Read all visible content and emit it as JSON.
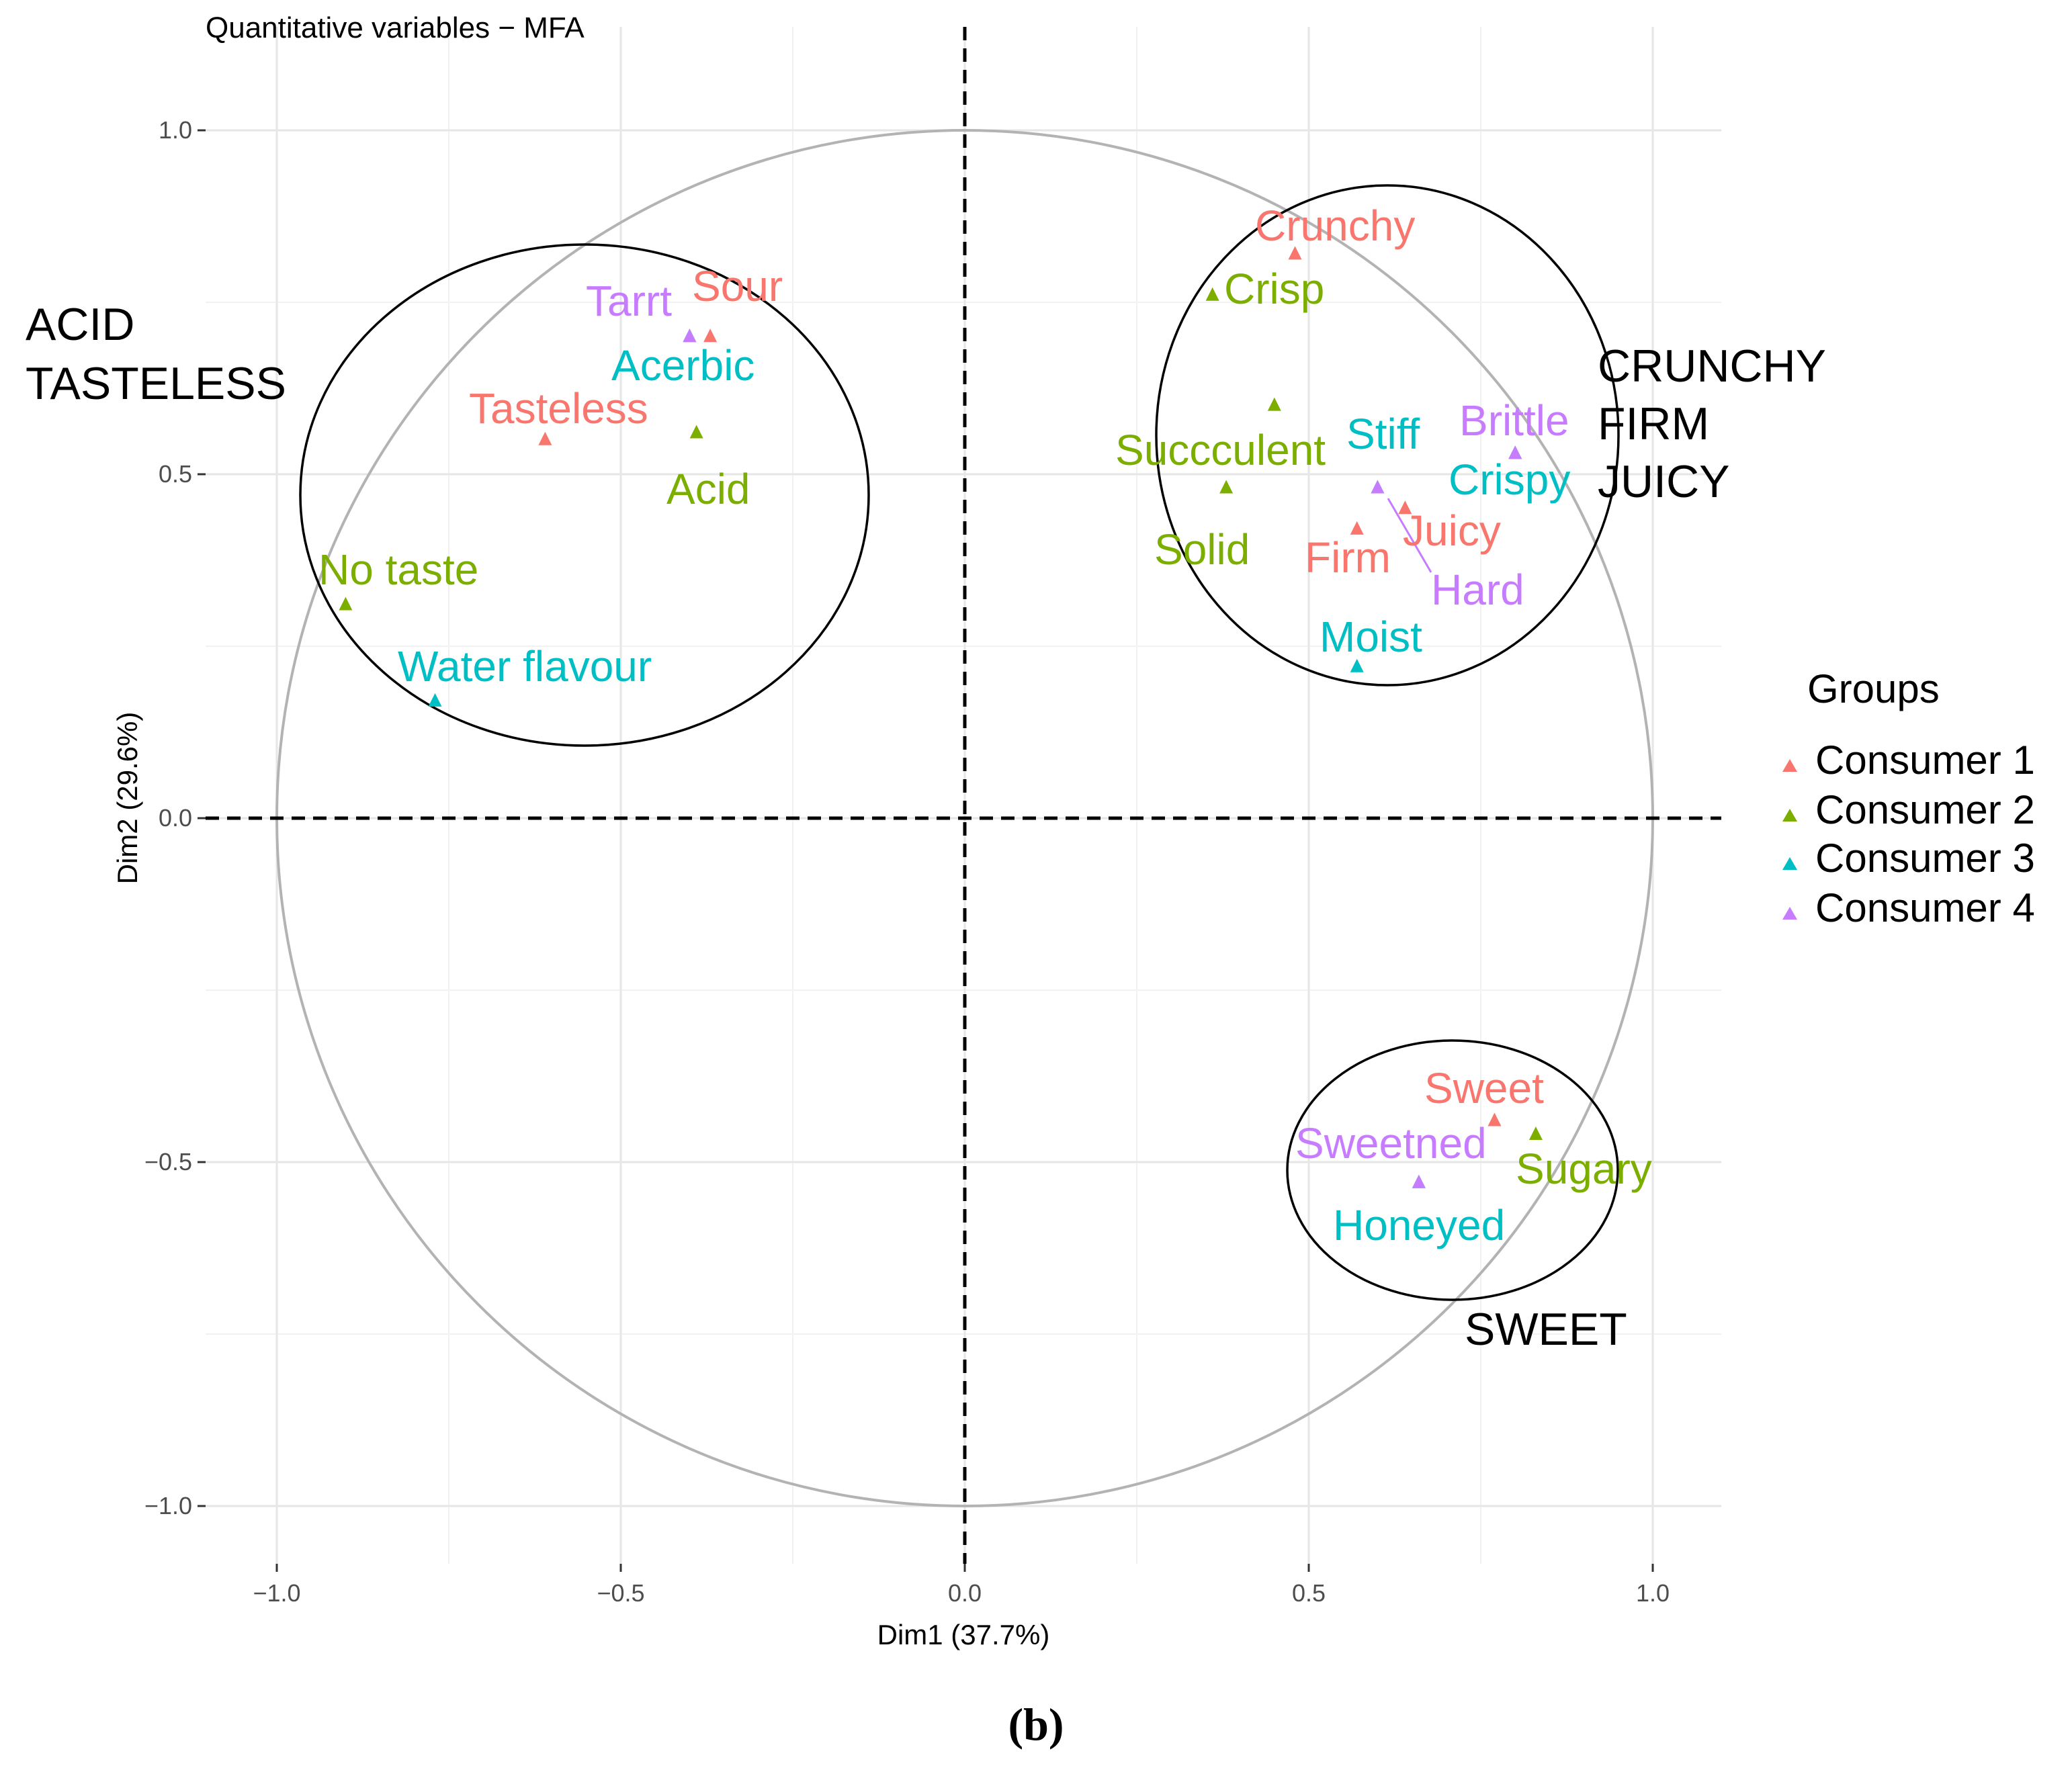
{
  "chart_data": {
    "type": "scatter",
    "title": "Quantitative variables − MFA",
    "xlabel": "Dim1 (37.7%)",
    "ylabel": "Dim2 (29.6%)",
    "xlim": [
      -1.1,
      1.1
    ],
    "ylim": [
      -1.1,
      1.1
    ],
    "x_ticks": [
      -1.0,
      -0.5,
      0.0,
      0.5,
      1.0
    ],
    "x_tick_labels": [
      "−1.0",
      "−0.5",
      "0.0",
      "0.5",
      "1.0"
    ],
    "y_ticks": [
      1.0,
      0.5,
      0.0,
      -0.5,
      -1.0
    ],
    "y_tick_labels": [
      "1.0",
      "0.5",
      "0.0",
      "−0.5",
      "−1.0"
    ],
    "grid": true,
    "correlation_circle_radius": 1.0,
    "legend": {
      "title": "Groups",
      "placement": "right",
      "entries": [
        {
          "name": "Consumer 1",
          "color": "#F8766D"
        },
        {
          "name": "Consumer 2",
          "color": "#7CAE00"
        },
        {
          "name": "Consumer 3",
          "color": "#00BFC4"
        },
        {
          "name": "Consumer 4",
          "color": "#C77CFF"
        }
      ]
    },
    "series": [
      {
        "name": "Consumer 1",
        "color": "#F8766D",
        "points": [
          {
            "label": "Sour",
            "x": -0.37,
            "y": 0.7
          },
          {
            "label": "Tasteless",
            "x": -0.61,
            "y": 0.55
          },
          {
            "label": "Crunchy",
            "x": 0.48,
            "y": 0.82
          },
          {
            "label": "Firm",
            "x": 0.57,
            "y": 0.42
          },
          {
            "label": "Juicy",
            "x": 0.64,
            "y": 0.45
          },
          {
            "label": "Sweet",
            "x": 0.77,
            "y": -0.44
          }
        ]
      },
      {
        "name": "Consumer 2",
        "color": "#7CAE00",
        "points": [
          {
            "label": "Acid",
            "x": -0.39,
            "y": 0.56
          },
          {
            "label": "No taste",
            "x": -0.9,
            "y": 0.31
          },
          {
            "label": "Crisp",
            "x": 0.36,
            "y": 0.76
          },
          {
            "label": "Succculent",
            "x": 0.45,
            "y": 0.6
          },
          {
            "label": "Solid",
            "x": 0.38,
            "y": 0.48
          },
          {
            "label": "Sugary",
            "x": 0.83,
            "y": -0.46
          }
        ]
      },
      {
        "name": "Consumer 3",
        "color": "#00BFC4",
        "points": [
          {
            "label": "Acerbic",
            "x": -0.4,
            "y": 0.7
          },
          {
            "label": "Water flavour",
            "x": -0.77,
            "y": 0.17
          },
          {
            "label": "Stiff",
            "x": 0.6,
            "y": 0.48
          },
          {
            "label": "Crispy",
            "x": 0.8,
            "y": 0.53
          },
          {
            "label": "Moist",
            "x": 0.57,
            "y": 0.22
          },
          {
            "label": "Honeyed",
            "x": 0.66,
            "y": -0.53
          }
        ]
      },
      {
        "name": "Consumer 4",
        "color": "#C77CFF",
        "points": [
          {
            "label": "Tarrt",
            "x": -0.4,
            "y": 0.7
          },
          {
            "label": "Brittle",
            "x": 0.8,
            "y": 0.53
          },
          {
            "label": "Hard",
            "x": 0.6,
            "y": 0.48
          },
          {
            "label": "Sweetned",
            "x": 0.66,
            "y": -0.53
          }
        ]
      }
    ],
    "cluster_annotations": [
      "ACID",
      "TASTELESS",
      "CRUNCHY",
      "FIRM",
      "JUICY",
      "SWEET"
    ]
  },
  "caption": "(b)"
}
